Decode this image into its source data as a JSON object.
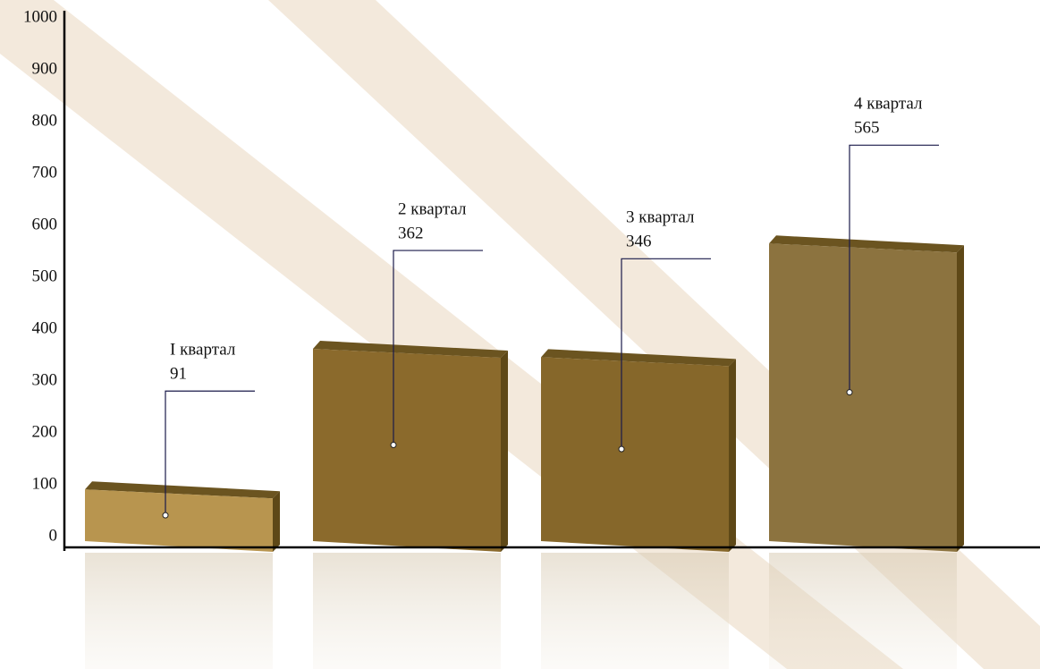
{
  "chart_data": {
    "type": "bar",
    "categories": [
      "I квартал",
      "2 квартал",
      "3 квартал",
      "4 квартал"
    ],
    "values": [
      91,
      362,
      346,
      565
    ],
    "colors": [
      "#b8954f",
      "#8b6a2c",
      "#86672a",
      "#8c733f"
    ],
    "ylim": [
      0,
      1000
    ],
    "yticks": [
      0,
      100,
      200,
      300,
      400,
      500,
      600,
      700,
      800,
      900,
      1000
    ]
  }
}
